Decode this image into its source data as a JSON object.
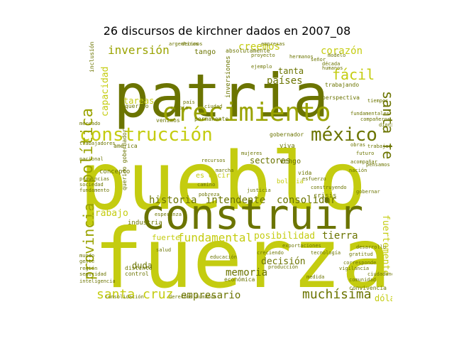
{
  "title": "26 discursos de kirchner dados en 2007_08",
  "colors": {
    "dark": "#6b7400",
    "mid": "#9aa300",
    "light": "#c4cc10"
  },
  "words": [
    {
      "text": "pueblo",
      "tone": "light"
    },
    {
      "text": "fuerza",
      "tone": "light"
    },
    {
      "text": "patria",
      "tone": "dark"
    },
    {
      "text": "construir",
      "tone": "dark"
    },
    {
      "text": "crecimiento",
      "tone": "mid"
    },
    {
      "text": "construcción",
      "tone": "light"
    },
    {
      "text": "méxico",
      "tone": "dark"
    },
    {
      "text": "política",
      "tone": "mid"
    },
    {
      "text": "provincia",
      "tone": "mid"
    },
    {
      "text": "santa cruz",
      "tone": "light"
    },
    {
      "text": "muchísima",
      "tone": "dark"
    },
    {
      "text": "fundamental",
      "tone": "light"
    },
    {
      "text": "inversión",
      "tone": "mid"
    },
    {
      "text": "creemos",
      "tone": "light"
    },
    {
      "text": "corazón",
      "tone": "light"
    },
    {
      "text": "santa fe",
      "tone": "dark"
    },
    {
      "text": "fácil",
      "tone": "light"
    },
    {
      "text": "historia",
      "tone": "dark"
    },
    {
      "text": "intendente",
      "tone": "dark"
    },
    {
      "text": "consolidar",
      "tone": "dark"
    },
    {
      "text": "tierra",
      "tone": "dark"
    },
    {
      "text": "fuertemente",
      "tone": "light"
    },
    {
      "text": "empresario",
      "tone": "dark"
    },
    {
      "text": "memoria",
      "tone": "dark"
    },
    {
      "text": "posibilidad",
      "tone": "light"
    },
    {
      "text": "decisión",
      "tone": "dark"
    },
    {
      "text": "trabajo",
      "tone": "light"
    },
    {
      "text": "capacidad",
      "tone": "light"
    },
    {
      "text": "sectores",
      "tone": "dark"
    },
    {
      "text": "países",
      "tone": "dark"
    },
    {
      "text": "tanta",
      "tone": "dark"
    },
    {
      "text": "tareas",
      "tone": "light"
    },
    {
      "text": "duda",
      "tone": "dark"
    },
    {
      "text": "dólares",
      "tone": "light"
    },
    {
      "text": "fuerte",
      "tone": "light"
    },
    {
      "text": "industria",
      "tone": "dark"
    },
    {
      "text": "inversiones",
      "tone": "dark"
    },
    {
      "text": "absolutamente",
      "tone": "dark"
    },
    {
      "text": "tango",
      "tone": "dark"
    },
    {
      "text": "querido",
      "tone": "dark"
    },
    {
      "text": "perspectiva",
      "tone": "dark"
    },
    {
      "text": "concepto",
      "tone": "dark"
    },
    {
      "text": "es decir",
      "tone": "light"
    },
    {
      "text": "vida",
      "tone": "dark"
    },
    {
      "text": "bolivia",
      "tone": "light"
    },
    {
      "text": "vengo",
      "tone": "dark"
    },
    {
      "text": "viva",
      "tone": "dark"
    },
    {
      "text": "gobernador",
      "tone": "dark"
    },
    {
      "text": "américa",
      "tone": "dark"
    },
    {
      "text": "inclusión social",
      "tone": "dark"
    },
    {
      "text": "convivencia",
      "tone": "dark"
    },
    {
      "text": "crisis",
      "tone": "dark"
    },
    {
      "text": "querido gobernador",
      "tone": "dark"
    },
    {
      "text": "económica",
      "tone": "dark"
    },
    {
      "text": "distinto",
      "tone": "dark"
    },
    {
      "text": "control",
      "tone": "dark"
    },
    {
      "text": "mercado",
      "tone": "dark"
    },
    {
      "text": "trabajadores",
      "tone": "dark"
    },
    {
      "text": "corresponde",
      "tone": "dark"
    },
    {
      "text": "modelo",
      "tone": "dark"
    },
    {
      "text": "señor",
      "tone": "dark"
    },
    {
      "text": "nación",
      "tone": "dark"
    },
    {
      "text": "década",
      "tone": "dark"
    },
    {
      "text": "humanos",
      "tone": "dark"
    },
    {
      "text": "derechos humanos",
      "tone": "dark"
    },
    {
      "text": "gobernar",
      "tone": "dark"
    },
    {
      "text": "medida",
      "tone": "dark"
    },
    {
      "text": "comunidad",
      "tone": "dark"
    },
    {
      "text": "venimos",
      "tone": "dark"
    },
    {
      "text": "decimos",
      "tone": "dark"
    },
    {
      "text": "tiempos",
      "tone": "dark"
    },
    {
      "text": "fundamentales",
      "tone": "dark"
    },
    {
      "text": "permanente",
      "tone": "dark"
    },
    {
      "text": "trabajando",
      "tone": "dark"
    },
    {
      "text": "nacional",
      "tone": "dark"
    },
    {
      "text": "provincias",
      "tone": "dark"
    },
    {
      "text": "sociedad",
      "tone": "dark"
    },
    {
      "text": "fundamento",
      "tone": "dark"
    },
    {
      "text": "mundo",
      "tone": "dark"
    },
    {
      "text": "gente",
      "tone": "dark"
    },
    {
      "text": "región",
      "tone": "dark"
    },
    {
      "text": "seguridad",
      "tone": "dark"
    },
    {
      "text": "inteligencia",
      "tone": "dark"
    },
    {
      "text": "exportaciones",
      "tone": "dark"
    },
    {
      "text": "creciendo",
      "tone": "dark"
    },
    {
      "text": "esperanza",
      "tone": "dark"
    },
    {
      "text": "producción",
      "tone": "dark"
    },
    {
      "text": "educación",
      "tone": "dark"
    },
    {
      "text": "salud",
      "tone": "dark"
    },
    {
      "text": "consolidación",
      "tone": "dark"
    },
    {
      "text": "tecnología",
      "tone": "dark"
    },
    {
      "text": "gratitud",
      "tone": "dark"
    },
    {
      "text": "vigilancia",
      "tone": "dark"
    },
    {
      "text": "ciudadanos",
      "tone": "dark"
    },
    {
      "text": "desarrollo",
      "tone": "dark"
    },
    {
      "text": "esfuerzo",
      "tone": "dark"
    },
    {
      "text": "construyendo",
      "tone": "dark"
    },
    {
      "text": "acompañar",
      "tone": "dark"
    },
    {
      "text": "pensamos",
      "tone": "dark"
    },
    {
      "text": "futuro",
      "tone": "dark"
    },
    {
      "text": "trabajar",
      "tone": "dark"
    },
    {
      "text": "obras",
      "tone": "dark"
    },
    {
      "text": "dignidad",
      "tone": "dark"
    },
    {
      "text": "compañeros",
      "tone": "dark"
    },
    {
      "text": "argentinos",
      "tone": "dark"
    },
    {
      "text": "empresas",
      "tone": "dark"
    },
    {
      "text": "hermanos",
      "tone": "dark"
    },
    {
      "text": "ejemplo",
      "tone": "dark"
    },
    {
      "text": "proyecto",
      "tone": "dark"
    },
    {
      "text": "cambio",
      "tone": "dark"
    },
    {
      "text": "país",
      "tone": "dark"
    },
    {
      "text": "ciudad",
      "tone": "dark"
    },
    {
      "text": "recursos",
      "tone": "dark"
    },
    {
      "text": "marcha",
      "tone": "dark"
    },
    {
      "text": "camino",
      "tone": "dark"
    },
    {
      "text": "pobreza",
      "tone": "dark"
    },
    {
      "text": "justicia",
      "tone": "dark"
    },
    {
      "text": "mujeres",
      "tone": "dark"
    }
  ]
}
